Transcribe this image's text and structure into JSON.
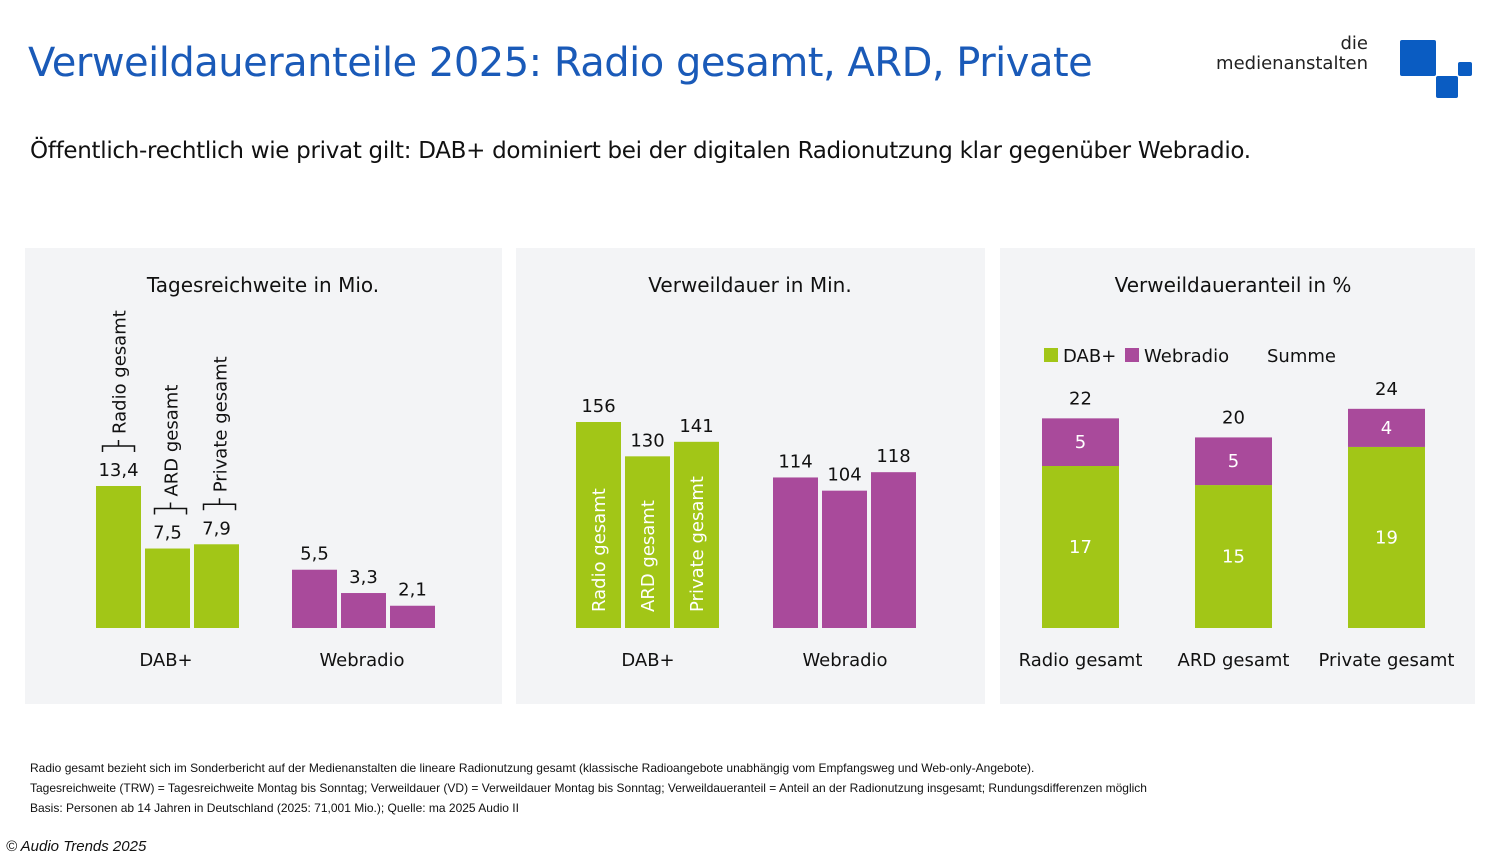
{
  "header": {
    "title": "Verweildaueranteile 2025: Radio gesamt, ARD, Private",
    "subtitle": "Öffentlich-rechtlich wie privat gilt: DAB+ dominiert bei der digitalen Radionutzung klar gegenüber Webradio."
  },
  "logo": {
    "line1": "die",
    "line2": "medienanstalten",
    "color": "#0a5cc2"
  },
  "colors": {
    "dab": "#a2c617",
    "webradio": "#a94a9b",
    "panel_bg": "#f3f4f6"
  },
  "chart_data": [
    {
      "type": "bar",
      "title": "Tagesreichweite in Mio.",
      "categories": [
        "DAB+",
        "Webradio"
      ],
      "series_labels": [
        "Radio gesamt",
        "ARD gesamt",
        "Private gesamt"
      ],
      "values": {
        "DAB+": [
          13.4,
          7.5,
          7.9
        ],
        "Webradio": [
          5.5,
          3.3,
          2.1
        ]
      },
      "value_labels": {
        "DAB+": [
          "13,4",
          "7,5",
          "7,9"
        ],
        "Webradio": [
          "5,5",
          "3,3",
          "2,1"
        ]
      },
      "ylim": [
        0,
        16
      ]
    },
    {
      "type": "bar",
      "title": "Verweildauer in Min.",
      "categories": [
        "DAB+",
        "Webradio"
      ],
      "series_labels": [
        "Radio gesamt",
        "ARD gesamt",
        "Private gesamt"
      ],
      "values": {
        "DAB+": [
          156,
          130,
          141
        ],
        "Webradio": [
          114,
          104,
          118
        ]
      },
      "value_labels": {
        "DAB+": [
          "156",
          "130",
          "141"
        ],
        "Webradio": [
          "114",
          "104",
          "118"
        ]
      },
      "ylim": [
        0,
        170
      ]
    },
    {
      "type": "bar",
      "stacked": true,
      "title": "Verweildaueranteil in %",
      "legend": [
        "DAB+",
        "Webradio",
        "Summe"
      ],
      "legend_position": "top",
      "categories": [
        "Radio gesamt",
        "ARD gesamt",
        "Private gesamt"
      ],
      "series": [
        {
          "name": "DAB+",
          "values": [
            17,
            15,
            19
          ]
        },
        {
          "name": "Webradio",
          "values": [
            5,
            5,
            4
          ]
        }
      ],
      "totals": [
        22,
        20,
        24
      ],
      "ylim": [
        0,
        26
      ]
    }
  ],
  "notes": [
    "Radio gesamt bezieht sich im Sonderbericht auf der Medienanstalten die lineare Radionutzung gesamt (klassische Radioangebote unabhängig vom Empfangsweg und Web-only-Angebote).",
    "Tagesreichweite (TRW) = Tagesreichweite Montag bis Sonntag; Verweildauer (VD) = Verweildauer Montag bis Sonntag; Verweildaueranteil = Anteil an der Radionutzung insgesamt; Rundungsdifferenzen möglich",
    "Basis: Personen ab 14 Jahren in Deutschland (2025: 71,001 Mio.); Quelle: ma 2025 Audio II"
  ],
  "copyright": "© Audio Trends 2025"
}
